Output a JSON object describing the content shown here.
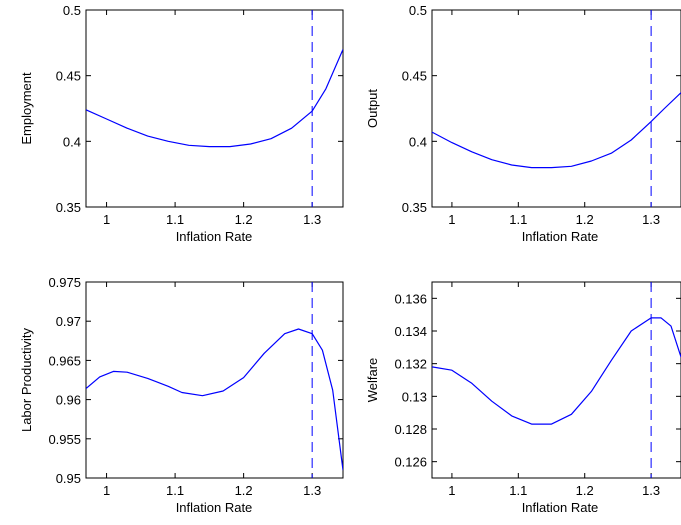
{
  "chart_data": [
    {
      "type": "line",
      "xlabel": "Inflation Rate",
      "ylabel": "Employment",
      "xlim": [
        0.97,
        1.345
      ],
      "ylim": [
        0.35,
        0.5
      ],
      "xticks": [
        1,
        1.1,
        1.2,
        1.3
      ],
      "yticks": [
        0.35,
        0.4,
        0.45,
        0.5
      ],
      "xtick_labels": [
        "1",
        "1.1",
        "1.2",
        "1.3"
      ],
      "ytick_labels": [
        "0.35",
        "0.4",
        "0.45",
        "0.5"
      ],
      "vline": 1.3,
      "series": [
        {
          "color": "#0000ff",
          "x": [
            0.97,
            1.0,
            1.03,
            1.06,
            1.09,
            1.12,
            1.15,
            1.18,
            1.21,
            1.24,
            1.27,
            1.3,
            1.32,
            1.345
          ],
          "y": [
            0.424,
            0.417,
            0.41,
            0.404,
            0.4,
            0.397,
            0.396,
            0.396,
            0.398,
            0.402,
            0.41,
            0.423,
            0.44,
            0.47
          ]
        }
      ]
    },
    {
      "type": "line",
      "xlabel": "Inflation Rate",
      "ylabel": "Output",
      "xlim": [
        0.97,
        1.345
      ],
      "ylim": [
        0.35,
        0.5
      ],
      "xticks": [
        1,
        1.1,
        1.2,
        1.3
      ],
      "yticks": [
        0.35,
        0.4,
        0.45,
        0.5
      ],
      "xtick_labels": [
        "1",
        "1.1",
        "1.2",
        "1.3"
      ],
      "ytick_labels": [
        "0.35",
        "0.4",
        "0.45",
        "0.5"
      ],
      "vline": 1.3,
      "series": [
        {
          "color": "#0000ff",
          "x": [
            0.97,
            1.0,
            1.03,
            1.06,
            1.09,
            1.12,
            1.15,
            1.18,
            1.21,
            1.24,
            1.27,
            1.3,
            1.32,
            1.345
          ],
          "y": [
            0.407,
            0.399,
            0.392,
            0.386,
            0.382,
            0.38,
            0.38,
            0.381,
            0.385,
            0.391,
            0.401,
            0.415,
            0.425,
            0.437
          ]
        }
      ]
    },
    {
      "type": "line",
      "xlabel": "Inflation Rate",
      "ylabel": "Labor Productivity",
      "xlim": [
        0.97,
        1.345
      ],
      "ylim": [
        0.95,
        0.975
      ],
      "xticks": [
        1,
        1.1,
        1.2,
        1.3
      ],
      "yticks": [
        0.95,
        0.955,
        0.96,
        0.965,
        0.97,
        0.975
      ],
      "xtick_labels": [
        "1",
        "1.1",
        "1.2",
        "1.3"
      ],
      "ytick_labels": [
        "0.95",
        "0.955",
        "0.96",
        "0.965",
        "0.97",
        "0.975"
      ],
      "vline": 1.3,
      "series": [
        {
          "color": "#0000ff",
          "x": [
            0.97,
            0.99,
            1.01,
            1.03,
            1.06,
            1.09,
            1.11,
            1.14,
            1.17,
            1.2,
            1.23,
            1.26,
            1.28,
            1.3,
            1.315,
            1.33,
            1.345
          ],
          "y": [
            0.9614,
            0.9629,
            0.9636,
            0.9635,
            0.9627,
            0.9617,
            0.9609,
            0.9605,
            0.9611,
            0.9628,
            0.9659,
            0.9684,
            0.969,
            0.9684,
            0.9663,
            0.9612,
            0.951
          ]
        }
      ]
    },
    {
      "type": "line",
      "xlabel": "Inflation Rate",
      "ylabel": "Welfare",
      "xlim": [
        0.97,
        1.345
      ],
      "ylim": [
        0.125,
        0.137
      ],
      "xticks": [
        1,
        1.1,
        1.2,
        1.3
      ],
      "yticks": [
        0.126,
        0.128,
        0.13,
        0.132,
        0.134,
        0.136
      ],
      "xtick_labels": [
        "1",
        "1.1",
        "1.2",
        "1.3"
      ],
      "ytick_labels": [
        "0.126",
        "0.128",
        "0.13",
        "0.132",
        "0.134",
        "0.136"
      ],
      "vline": 1.3,
      "series": [
        {
          "color": "#0000ff",
          "x": [
            0.97,
            1.0,
            1.03,
            1.06,
            1.09,
            1.12,
            1.15,
            1.18,
            1.21,
            1.24,
            1.27,
            1.3,
            1.315,
            1.33,
            1.345
          ],
          "y": [
            0.1318,
            0.1316,
            0.1308,
            0.1297,
            0.1288,
            0.1283,
            0.1283,
            0.1289,
            0.1303,
            0.1322,
            0.134,
            0.1348,
            0.1348,
            0.1343,
            0.1324
          ]
        }
      ]
    }
  ]
}
